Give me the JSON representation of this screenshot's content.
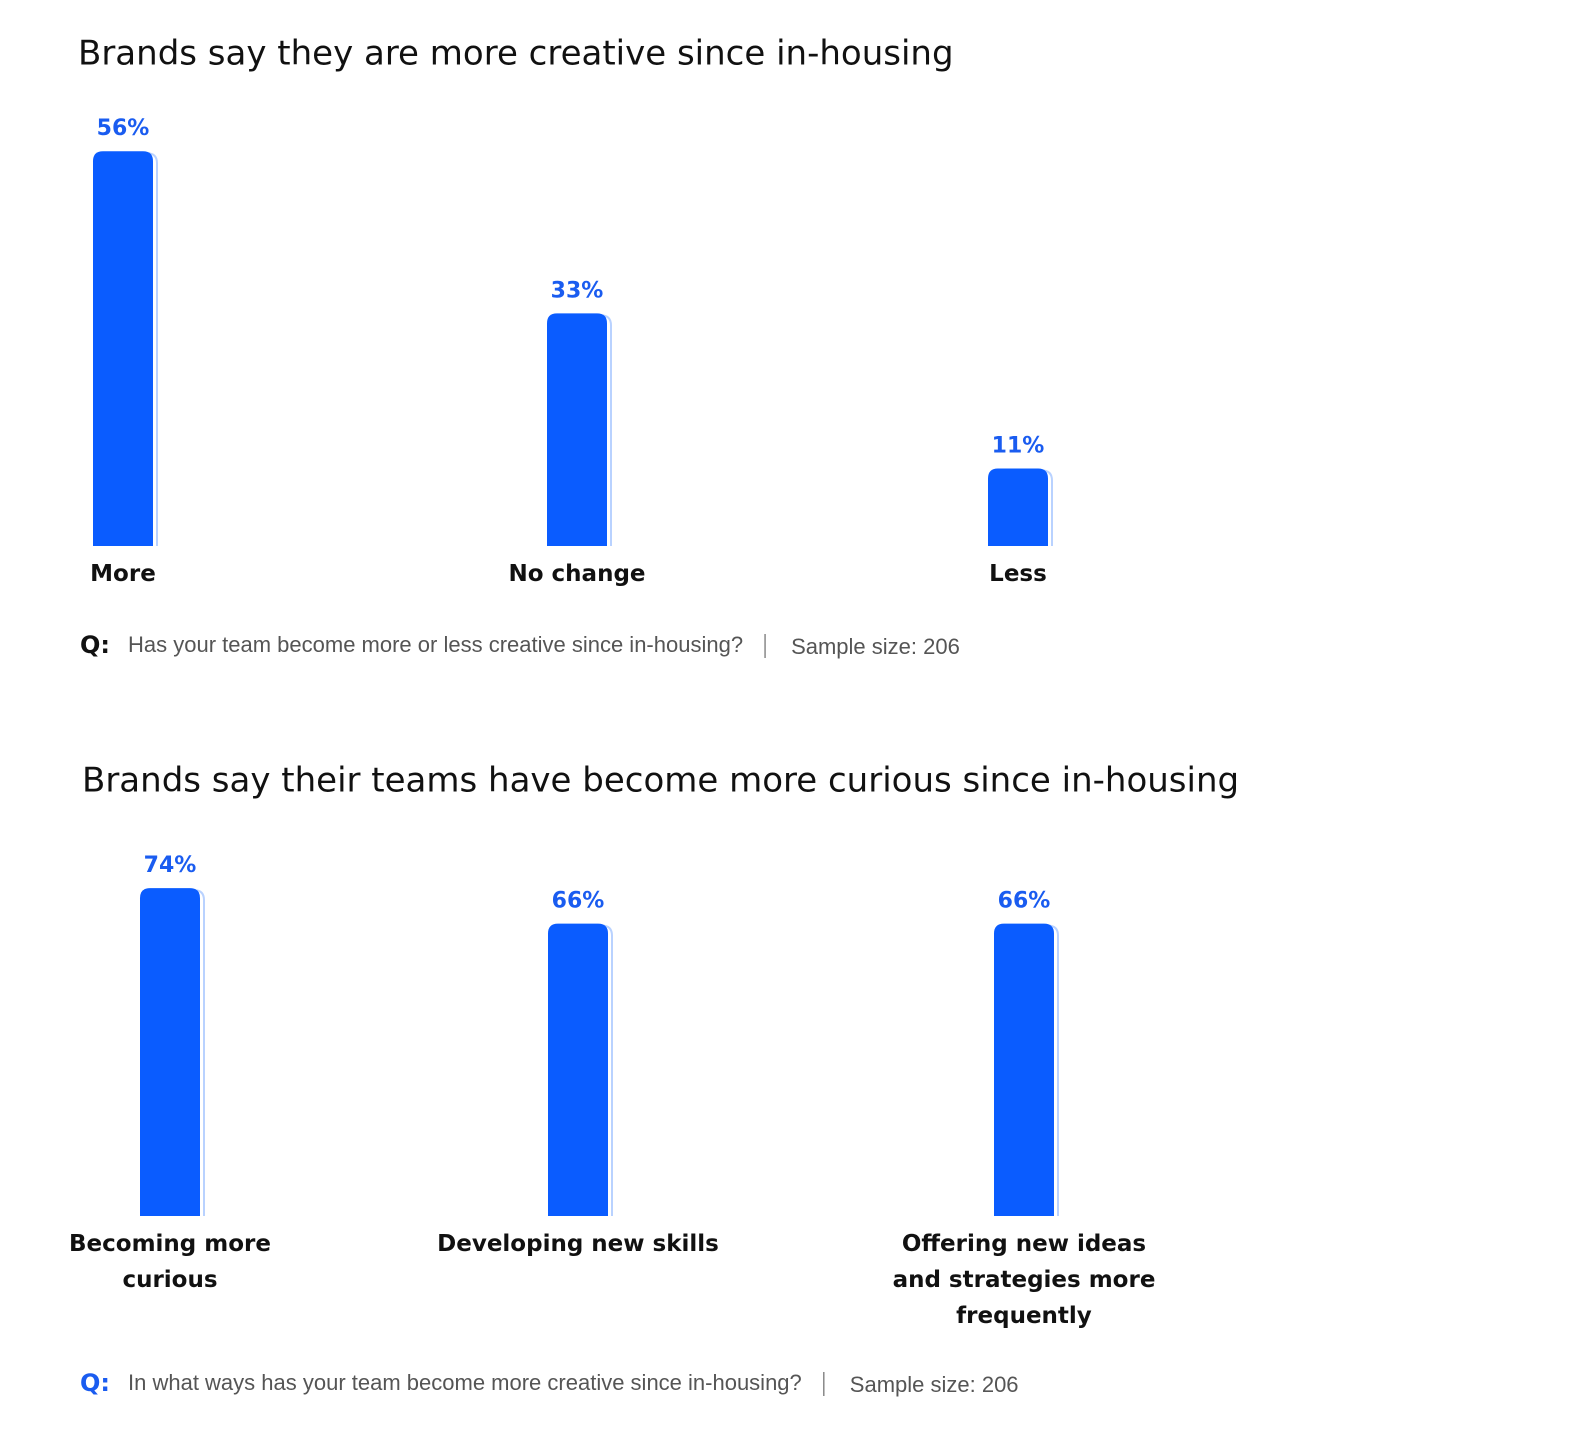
{
  "chart_data": [
    {
      "type": "bar",
      "title": "Brands say they are more creative since in-housing",
      "categories": [
        "More",
        "No change",
        "Less"
      ],
      "values": [
        56,
        33,
        11
      ],
      "value_labels": [
        "56%",
        "33%",
        "11%"
      ],
      "color": "#0a5cff",
      "question_marker": "Q:",
      "question": "Has your team become more or less creative since in-housing?",
      "sample_size": "Sample size: 206"
    },
    {
      "type": "bar",
      "title": "Brands say their teams have become more curious since in-housing",
      "categories": [
        "Becoming more curious",
        "Developing new skills",
        "Offering new ideas and strategies more frequently"
      ],
      "values": [
        74,
        66,
        66
      ],
      "value_labels": [
        "74%",
        "66%",
        "66%"
      ],
      "color": "#0a5cff",
      "question_marker": "Q:",
      "question": "In what ways has your team become more creative since in-housing?",
      "sample_size": "Sample size: 206"
    }
  ]
}
